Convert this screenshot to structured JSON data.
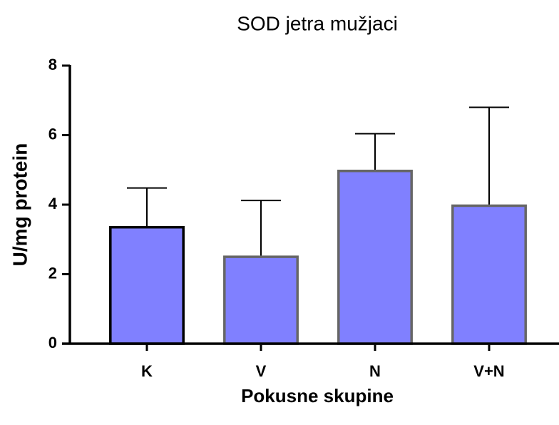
{
  "chart_data": {
    "type": "bar",
    "title": "SOD jetra mužjaci",
    "xlabel": "Pokusne skupine",
    "ylabel": "U/mg protein",
    "categories": [
      "K",
      "V",
      "N",
      "V+N"
    ],
    "values": [
      3.35,
      2.5,
      4.97,
      3.97
    ],
    "errors": [
      1.13,
      1.62,
      1.07,
      2.83
    ],
    "color": "#8080ff",
    "edgecolors": [
      "#000000",
      "#666666",
      "#666666",
      "#666666"
    ],
    "ylim": [
      0,
      8
    ],
    "yticks": [
      0,
      2,
      4,
      6,
      8
    ],
    "grid": false
  }
}
